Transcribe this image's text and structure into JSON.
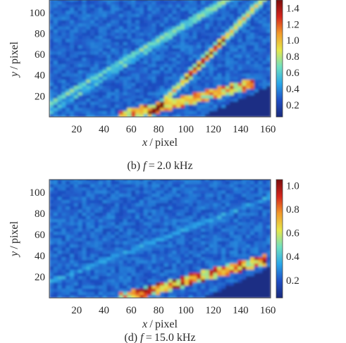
{
  "chart_data": [
    {
      "type": "heatmap",
      "caption": "(b) f = 2.0 kHz",
      "caption_parts": {
        "prefix": "(b) ",
        "var": "f",
        "rest": " = 2.0 kHz"
      },
      "xlabel": {
        "var": "x",
        "unit": " / pixel"
      },
      "ylabel": {
        "var": "y",
        "unit": " / pixel"
      },
      "xticks": [
        20,
        40,
        60,
        80,
        100,
        120,
        140,
        160
      ],
      "yticks": [
        20,
        40,
        60,
        80,
        100
      ],
      "xlim": [
        0,
        162
      ],
      "ylim": [
        0,
        112
      ],
      "colorbar_ticks": [
        "0.2",
        "0.4",
        "0.6",
        "0.8",
        "1.0",
        "1.2",
        "1.4"
      ],
      "colorbar_values": [
        0.2,
        0.4,
        0.6,
        0.8,
        1.0,
        1.2,
        1.4
      ],
      "crange": [
        0.05,
        1.5
      ],
      "colormap": [
        "#1a2a7a",
        "#1f4fc4",
        "#2aa6e8",
        "#6fe0c0",
        "#e6e84a",
        "#f29a2a",
        "#d4251c",
        "#7a0c0c"
      ],
      "features": "two diagonal high-intensity streaks from lower-left to upper-right; bright spots along a lower diagonal edge near y 5-25 from x 60-140; dark triangle at lower right"
    },
    {
      "type": "heatmap",
      "caption": "(d) f = 15.0 kHz",
      "caption_parts": {
        "prefix": "(d) ",
        "var": "f",
        "rest": " = 15.0 kHz"
      },
      "xlabel": {
        "var": "x",
        "unit": " / pixel"
      },
      "ylabel": {
        "var": "y",
        "unit": " / pixel"
      },
      "xticks": [
        20,
        40,
        60,
        80,
        100,
        120,
        140,
        160
      ],
      "yticks": [
        20,
        40,
        60,
        80,
        100
      ],
      "xlim": [
        0,
        162
      ],
      "ylim": [
        0,
        112
      ],
      "colorbar_ticks": [
        "0.2",
        "0.4",
        "0.6",
        "0.8",
        "1.0"
      ],
      "colorbar_values": [
        0.2,
        0.4,
        0.6,
        0.8,
        1.0
      ],
      "crange": [
        0.05,
        1.05
      ],
      "colormap": [
        "#1a2a7a",
        "#1f4fc4",
        "#2aa6e8",
        "#6fe0c0",
        "#e6e84a",
        "#f29a2a",
        "#d4251c",
        "#7a0c0c"
      ],
      "features": "mostly low intensity noise; hot spots along a diagonal edge from x 60 to 155, y 5-40; dark triangle at lower right"
    }
  ]
}
